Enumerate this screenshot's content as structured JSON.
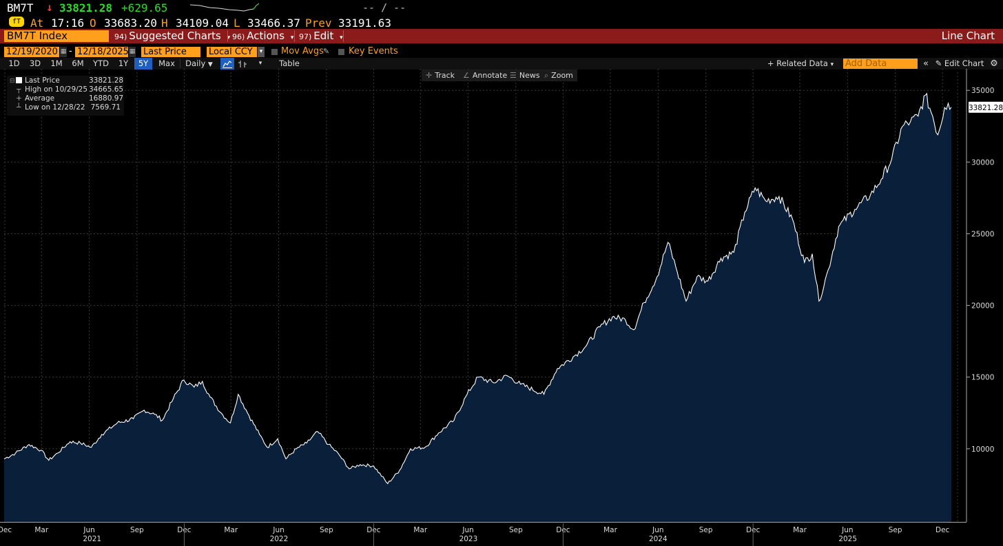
{
  "quote": {
    "ticker": "BM7T",
    "arrow": "↓",
    "last": "33821.28",
    "change": "+629.65",
    "empty_fields": "--  /  --",
    "at_icon": "fT",
    "at_label": "At",
    "time": "17:16",
    "open_label": "O",
    "open": "33683.20",
    "high_label": "H",
    "high": "34109.04",
    "low_label": "L",
    "low": "33466.37",
    "prev_label": "Prev",
    "prev": "33191.63"
  },
  "menubar": {
    "security": "BM7T Index",
    "suggested_num": "94)",
    "suggested": "Suggested Charts",
    "actions_num": "96)",
    "actions": "Actions",
    "edit_num": "97)",
    "edit": "Edit",
    "view": "Line Chart",
    "colors": {
      "bar": "#8b1a1a",
      "field": "#ff9f1c"
    }
  },
  "controls": {
    "start_date": "12/19/2020",
    "dash": "-",
    "end_date": "12/18/2025",
    "field": "Last Price",
    "currency": "Local CCY",
    "mov_avgs": "Mov Avgs",
    "key_events": "Key Events"
  },
  "ranges": {
    "buttons": [
      "1D",
      "3D",
      "1M",
      "6M",
      "YTD",
      "1Y",
      "5Y",
      "Max"
    ],
    "active": "5Y",
    "frequency": "Daily",
    "table": "Table",
    "related": "Related Data",
    "add_data": "Add Data",
    "edit_chart": "Edit Chart"
  },
  "tools": {
    "track": "Track",
    "annotate": "Annotate",
    "news": "News",
    "zoom": "Zoom"
  },
  "legend": {
    "rows": [
      {
        "label": "Last Price",
        "value": "33821.28"
      },
      {
        "label": "High on 10/29/25",
        "value": "34665.65"
      },
      {
        "label": "Average",
        "value": "16880.97"
      },
      {
        "label": "Low on 12/28/22",
        "value": "7569.71"
      }
    ]
  },
  "chart_data": {
    "type": "area",
    "series_name": "Last Price",
    "line_color": "#ffffff",
    "fill_color": "#0a1f3a",
    "ylim": [
      4900,
      36500
    ],
    "yticks": [
      10000,
      15000,
      20000,
      25000,
      30000,
      35000
    ],
    "last_value_label": "33821.28",
    "grid": true,
    "legend_position": "top-left",
    "x_month_labels": [
      "Dec",
      "Mar",
      "Jun",
      "Sep",
      "Dec",
      "Mar",
      "Jun",
      "Sep",
      "Dec",
      "Mar",
      "Jun",
      "Sep",
      "Dec",
      "Mar",
      "Jun",
      "Sep",
      "Dec",
      "Mar",
      "Jun",
      "Sep",
      "Dec"
    ],
    "x_year_labels": [
      "2021",
      "2022",
      "2023",
      "2024",
      "2025"
    ],
    "x_start": "2020-12-19",
    "x_end": "2025-12-18",
    "points": [
      [
        "2020-12-19",
        9300
      ],
      [
        "2021-01-10",
        9700
      ],
      [
        "2021-02-05",
        10300
      ],
      [
        "2021-02-28",
        9900
      ],
      [
        "2021-03-15",
        9200
      ],
      [
        "2021-04-01",
        9700
      ],
      [
        "2021-04-25",
        10500
      ],
      [
        "2021-05-15",
        10400
      ],
      [
        "2021-06-05",
        10100
      ],
      [
        "2021-06-25",
        11000
      ],
      [
        "2021-07-25",
        11800
      ],
      [
        "2021-08-25",
        12100
      ],
      [
        "2021-09-15",
        12700
      ],
      [
        "2021-10-05",
        12400
      ],
      [
        "2021-10-20",
        12000
      ],
      [
        "2021-11-10",
        13500
      ],
      [
        "2021-11-30",
        14800
      ],
      [
        "2021-12-20",
        14300
      ],
      [
        "2022-01-05",
        14700
      ],
      [
        "2022-01-20",
        13600
      ],
      [
        "2022-02-10",
        12500
      ],
      [
        "2022-02-28",
        11800
      ],
      [
        "2022-03-15",
        13800
      ],
      [
        "2022-04-05",
        12300
      ],
      [
        "2022-04-25",
        11000
      ],
      [
        "2022-05-10",
        10100
      ],
      [
        "2022-05-30",
        10700
      ],
      [
        "2022-06-15",
        9300
      ],
      [
        "2022-07-05",
        10000
      ],
      [
        "2022-07-25",
        10400
      ],
      [
        "2022-08-15",
        11200
      ],
      [
        "2022-09-05",
        10300
      ],
      [
        "2022-09-25",
        9600
      ],
      [
        "2022-10-15",
        8600
      ],
      [
        "2022-11-05",
        8900
      ],
      [
        "2022-12-01",
        8800
      ],
      [
        "2022-12-28",
        7570
      ],
      [
        "2023-01-20",
        8500
      ],
      [
        "2023-02-10",
        10000
      ],
      [
        "2023-03-10",
        10100
      ],
      [
        "2023-04-05",
        11100
      ],
      [
        "2023-05-05",
        12000
      ],
      [
        "2023-05-30",
        13800
      ],
      [
        "2023-06-20",
        15000
      ],
      [
        "2023-07-20",
        14600
      ],
      [
        "2023-08-15",
        15100
      ],
      [
        "2023-09-10",
        14500
      ],
      [
        "2023-10-25",
        13800
      ],
      [
        "2023-11-20",
        15600
      ],
      [
        "2023-12-20",
        16400
      ],
      [
        "2024-01-15",
        17200
      ],
      [
        "2024-02-10",
        18500
      ],
      [
        "2024-03-05",
        19200
      ],
      [
        "2024-03-30",
        19000
      ],
      [
        "2024-04-15",
        18300
      ],
      [
        "2024-05-05",
        20200
      ],
      [
        "2024-05-30",
        22000
      ],
      [
        "2024-06-20",
        24400
      ],
      [
        "2024-07-05",
        22700
      ],
      [
        "2024-07-25",
        20300
      ],
      [
        "2024-08-15",
        22000
      ],
      [
        "2024-09-05",
        21700
      ],
      [
        "2024-09-30",
        23300
      ],
      [
        "2024-10-25",
        23700
      ],
      [
        "2024-11-15",
        26500
      ],
      [
        "2024-12-05",
        28200
      ],
      [
        "2024-12-25",
        27300
      ],
      [
        "2025-01-20",
        27600
      ],
      [
        "2025-02-15",
        26000
      ],
      [
        "2025-03-10",
        23000
      ],
      [
        "2025-03-25",
        23600
      ],
      [
        "2025-04-07",
        20300
      ],
      [
        "2025-04-25",
        22500
      ],
      [
        "2025-05-15",
        25500
      ],
      [
        "2025-06-15",
        26700
      ],
      [
        "2025-07-15",
        27700
      ],
      [
        "2025-08-05",
        28800
      ],
      [
        "2025-08-25",
        30200
      ],
      [
        "2025-09-15",
        32500
      ],
      [
        "2025-09-30",
        32800
      ],
      [
        "2025-10-15",
        33200
      ],
      [
        "2025-10-29",
        34666
      ],
      [
        "2025-11-12",
        33200
      ],
      [
        "2025-11-22",
        31900
      ],
      [
        "2025-12-05",
        33800
      ],
      [
        "2025-12-12",
        34100
      ],
      [
        "2025-12-18",
        33821
      ]
    ]
  }
}
